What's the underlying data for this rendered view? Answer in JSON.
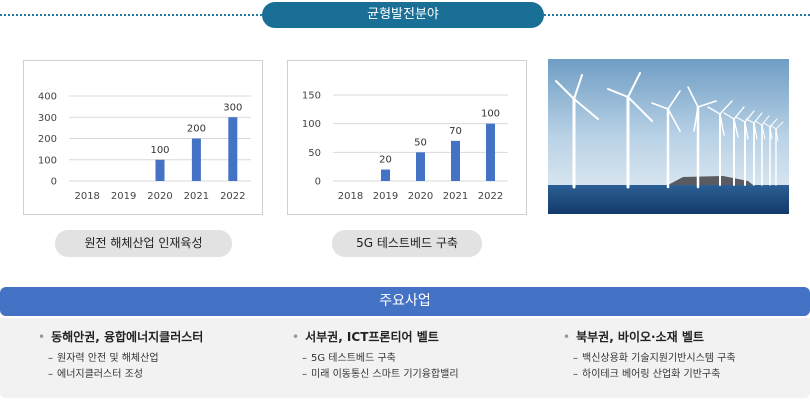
{
  "section": {
    "title": "균형발전분야"
  },
  "chart_data": [
    {
      "type": "bar",
      "categories": [
        "2018",
        "2019",
        "2020",
        "2021",
        "2022"
      ],
      "values": [
        0,
        0,
        100,
        200,
        300
      ],
      "ylim": [
        0,
        400
      ],
      "yticks": [
        0,
        100,
        200,
        300,
        400
      ],
      "data_labels": [
        "",
        "",
        "100",
        "200",
        "300"
      ],
      "grid": true,
      "color": "#4472c4"
    },
    {
      "type": "bar",
      "categories": [
        "2018",
        "2019",
        "2020",
        "2021",
        "2022"
      ],
      "values": [
        0,
        20,
        50,
        70,
        100
      ],
      "ylim": [
        0,
        150
      ],
      "yticks": [
        0,
        50,
        100,
        150
      ],
      "data_labels": [
        "",
        "20",
        "50",
        "70",
        "100"
      ],
      "grid": true,
      "color": "#4472c4"
    }
  ],
  "captions": [
    "원전 해체산업 인재육성",
    "5G 테스트베드 구축"
  ],
  "main": {
    "title": "주요사업",
    "columns": [
      {
        "title": "동해안권, 융합에너지클러스터",
        "items": [
          "원자력 안전 및 해체산업",
          "에너지클러스터 조성"
        ]
      },
      {
        "title": "서부권, ICT프론티어 벨트",
        "items": [
          "5G 테스트베드 구축",
          "미래 이동통신 스마트 기기융합밸리"
        ]
      },
      {
        "title": "북부권, 바이오·소재 벨트",
        "items": [
          "백신상용화 기술지원기반시스템 구축",
          "하이테크 베어링 산업화 기반구축"
        ]
      }
    ]
  },
  "colors": {
    "accent": "#1a6f96",
    "bar": "#4472c4",
    "caption_bg": "#e2e2e2",
    "card_bg": "#f2f2f2"
  },
  "icons": {
    "photo": "wind-turbines-photo",
    "bullet": "bullet-dot-icon",
    "dash": "dash-icon"
  }
}
